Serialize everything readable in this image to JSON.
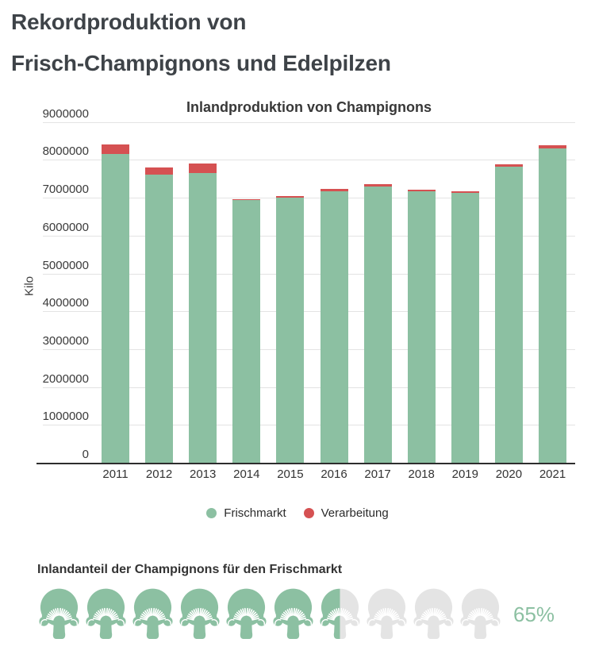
{
  "header": {
    "title_line1": "Rekordproduktion von",
    "title_line2": "Frisch-Champignons und Edelpilzen"
  },
  "chart_data": {
    "type": "bar",
    "stacked": true,
    "title": "Inlandproduktion von Champignons",
    "categories": [
      "2011",
      "2012",
      "2013",
      "2014",
      "2015",
      "2016",
      "2017",
      "2018",
      "2019",
      "2020",
      "2021"
    ],
    "series": [
      {
        "name": "Frischmarkt",
        "color": "#8cc0a2",
        "values": [
          8150000,
          7600000,
          7650000,
          6930000,
          7000000,
          7180000,
          7300000,
          7160000,
          7130000,
          7820000,
          8310000
        ]
      },
      {
        "name": "Verarbeitung",
        "color": "#d55152",
        "values": [
          250000,
          200000,
          250000,
          30000,
          50000,
          50000,
          50000,
          50000,
          40000,
          70000,
          80000
        ]
      }
    ],
    "xlabel": "",
    "ylabel": "Kilo",
    "ylim": [
      0,
      9000000
    ],
    "yticks": [
      0,
      1000000,
      2000000,
      3000000,
      4000000,
      5000000,
      6000000,
      7000000,
      8000000,
      9000000
    ],
    "ytick_labels": [
      "0",
      "1000000",
      "2000000",
      "3000000",
      "4000000",
      "5000000",
      "6000000",
      "7000000",
      "8000000",
      "9000000"
    ],
    "grid": true,
    "legend_position": "bottom"
  },
  "share_infographic": {
    "heading": "Inlandanteil der Champignons für den Frischmarkt",
    "percent": 65,
    "percent_label": "65%",
    "icons_total": 10,
    "icons_filled": 6.5,
    "icon": "mushroom-icon",
    "filled_color": "#8cc0a2",
    "empty_color": "#e4e4e4"
  },
  "colors": {
    "title_text": "#3e4348",
    "axis_text": "#3a3a3a",
    "gridline": "#e3e3e3",
    "axis_line": "#2d2d2d",
    "background": "#ffffff"
  }
}
